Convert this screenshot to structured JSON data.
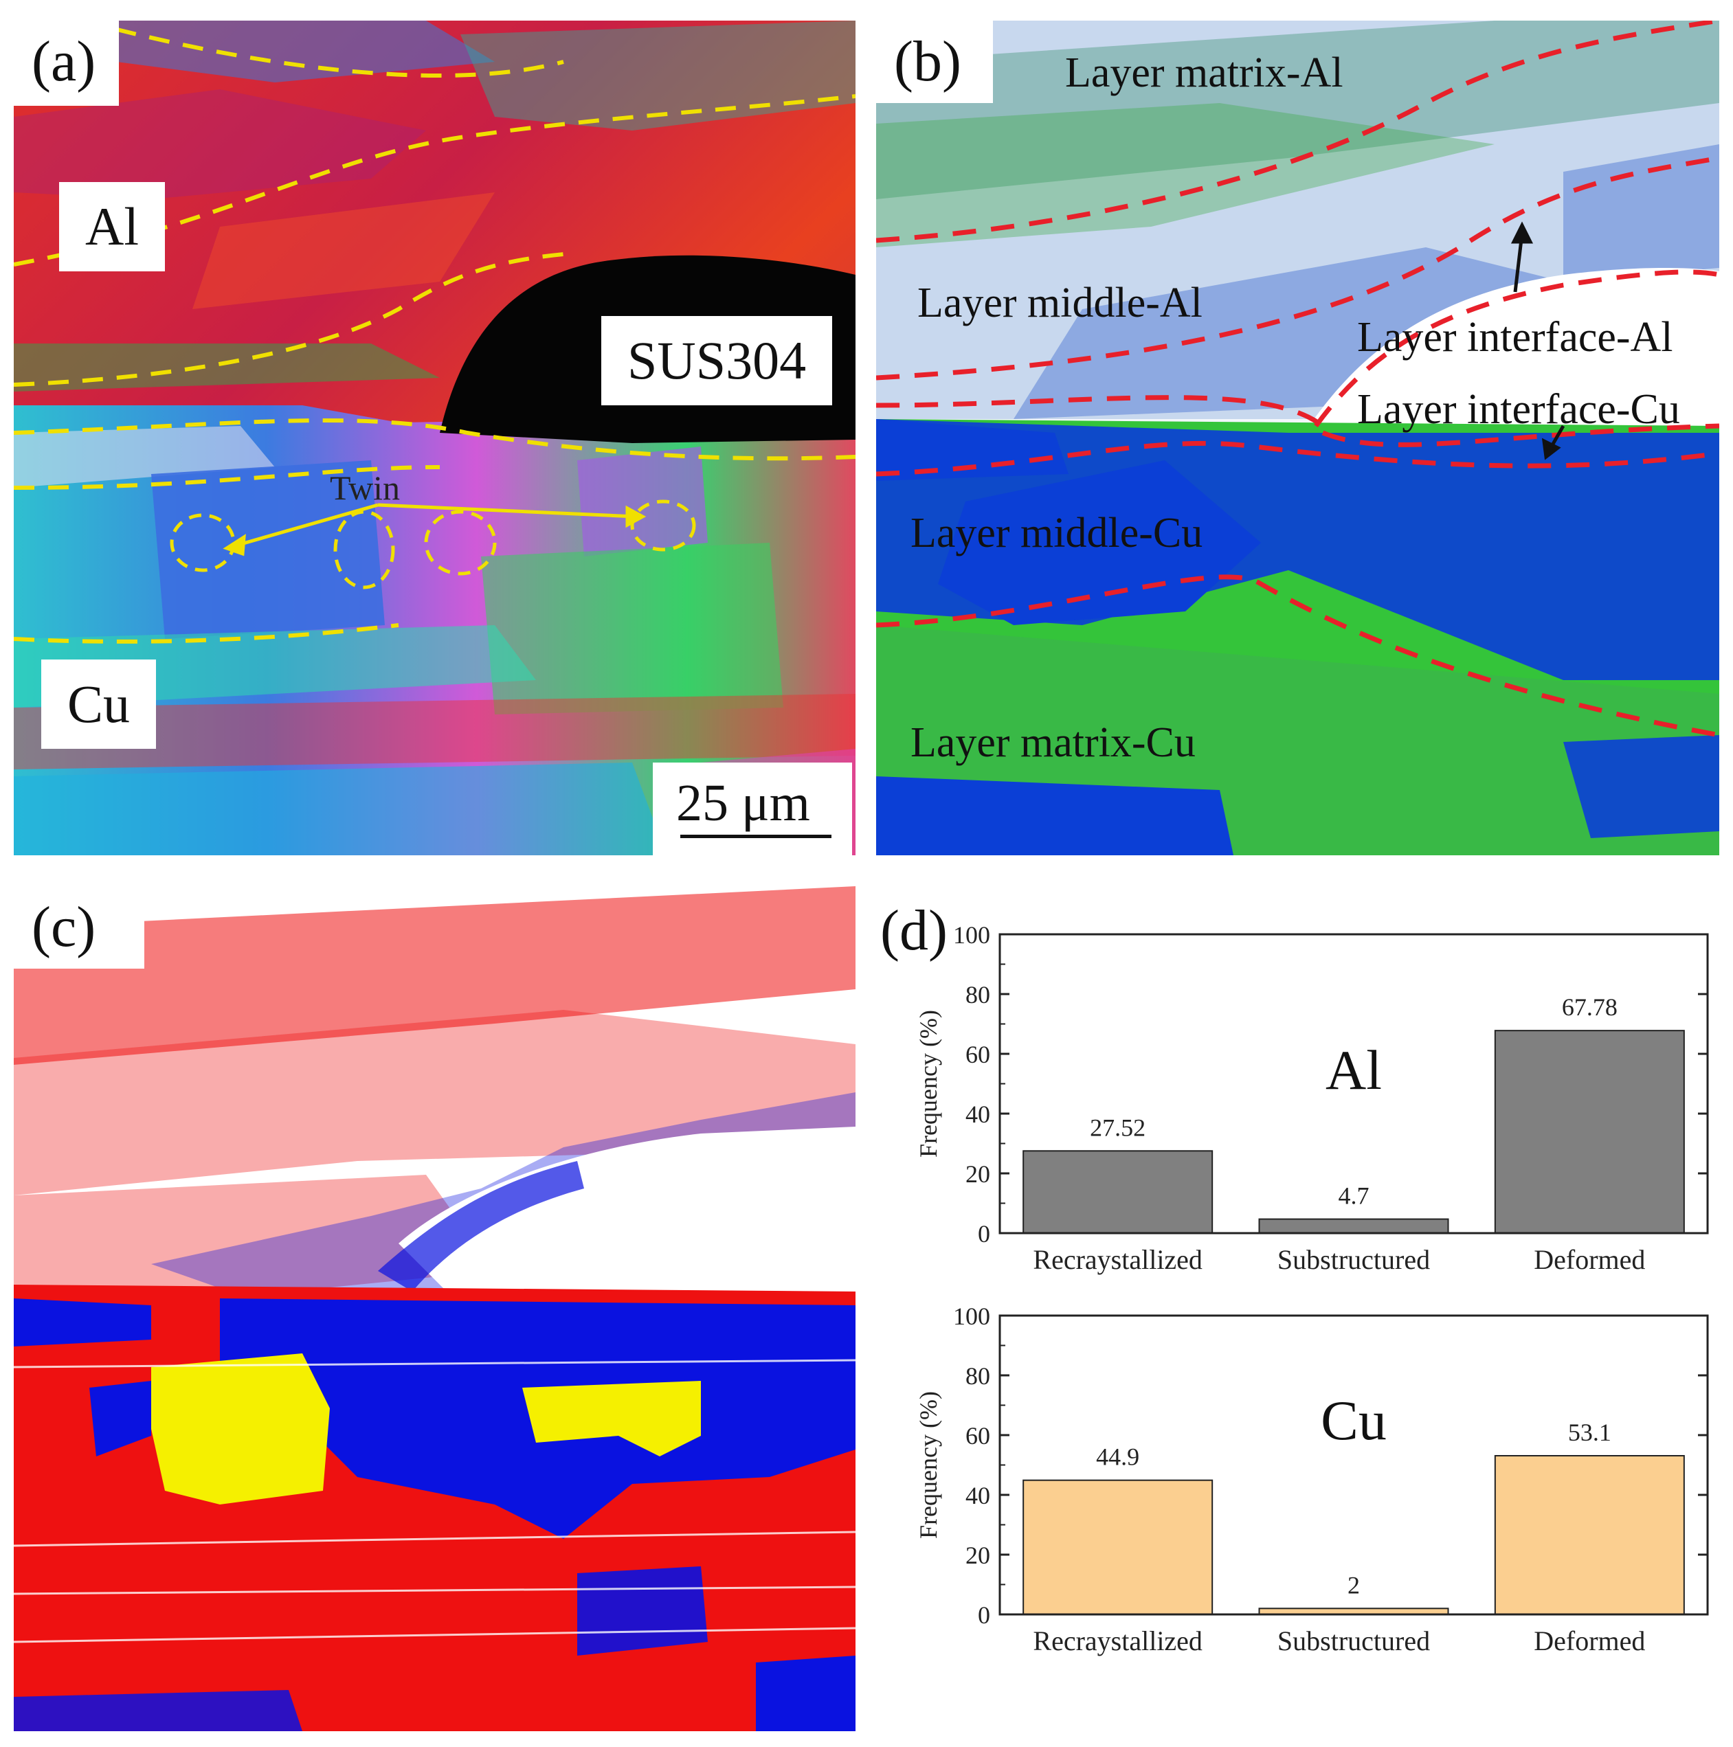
{
  "panels": {
    "a": {
      "label": "(a)",
      "materials": {
        "al": "Al",
        "sus": "SUS304",
        "cu": "Cu"
      },
      "twin": "Twin",
      "scale_bar": "25 μm"
    },
    "b": {
      "label": "(b)",
      "regions": {
        "matrix_al": "Layer matrix-Al",
        "middle_al": "Layer middle-Al",
        "interface_al": "Layer interface-Al",
        "interface_cu": "Layer interface-Cu",
        "middle_cu": "Layer middle-Cu",
        "matrix_cu": "Layer matrix-Cu"
      },
      "colors": {
        "blue": "#0b3fd6",
        "green": "#3cc83c",
        "boundary": "#e8202a"
      }
    },
    "c": {
      "label": "(c)",
      "colors": {
        "deformed": "#ee1111",
        "substructured": "#f5f000",
        "recrystallized": "#0a12e0"
      }
    },
    "d": {
      "label": "(d)"
    }
  },
  "chart_data": [
    {
      "type": "bar",
      "title": "Al",
      "categories": [
        "Recraystallized",
        "Substructured",
        "Deformed"
      ],
      "values": [
        27.52,
        4.7,
        67.78
      ],
      "value_labels": [
        "27.52",
        "4.7",
        "67.78"
      ],
      "xlabel": "",
      "ylabel": "Frequency (%)",
      "ylim": [
        0,
        100
      ],
      "yticks": [
        0,
        20,
        40,
        60,
        80,
        100
      ],
      "bar_color": "#808080",
      "grid": false
    },
    {
      "type": "bar",
      "title": "Cu",
      "categories": [
        "Recraystallized",
        "Substructured",
        "Deformed"
      ],
      "values": [
        44.9,
        2,
        53.1
      ],
      "value_labels": [
        "44.9",
        "2",
        "53.1"
      ],
      "xlabel": "",
      "ylabel": "Frequency (%)",
      "ylim": [
        0,
        100
      ],
      "yticks": [
        0,
        20,
        40,
        60,
        80,
        100
      ],
      "bar_color": "#fbcf90",
      "grid": false
    }
  ]
}
